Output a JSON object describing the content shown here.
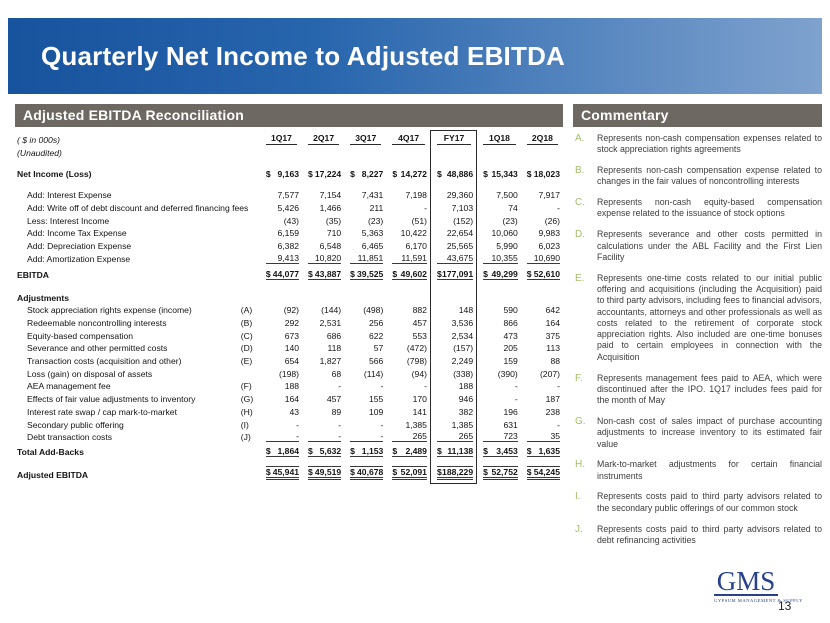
{
  "slide": {
    "title": "Quarterly Net Income to Adjusted EBITDA",
    "page_number": "13"
  },
  "reconciliation": {
    "header": "Adjusted EBITDA Reconciliation",
    "units_note": "( $ in 000s)",
    "unaudited_note": "(Unaudited)",
    "columns": [
      "1Q17",
      "2Q17",
      "3Q17",
      "4Q17",
      "FY17",
      "1Q18",
      "2Q18"
    ],
    "fy_column_index": 4,
    "rows": [
      {
        "type": "spacer",
        "h": 7
      },
      {
        "type": "data",
        "label": "Net Income (Loss)",
        "note": "",
        "bold": true,
        "dollar": true,
        "h": 14,
        "values": [
          "9,163",
          "17,224",
          "8,227",
          "14,272",
          "48,886",
          "15,343",
          "18,023"
        ]
      },
      {
        "type": "spacer",
        "h": 9
      },
      {
        "type": "data",
        "label": "Add: Interest Expense",
        "indent": true,
        "values": [
          "7,577",
          "7,154",
          "7,431",
          "7,198",
          "29,360",
          "7,500",
          "7,917"
        ]
      },
      {
        "type": "data",
        "label": "Add: Write off of debt discount and deferred financing fees",
        "indent": true,
        "values": [
          "5,426",
          "1,466",
          "211",
          "-",
          "7,103",
          "74",
          "-"
        ]
      },
      {
        "type": "data",
        "label": "Less: Interest Income",
        "indent": true,
        "values": [
          "(43)",
          "(35)",
          "(23)",
          "(51)",
          "(152)",
          "(23)",
          "(26)"
        ]
      },
      {
        "type": "data",
        "label": "Add: Income Tax Expense",
        "indent": true,
        "values": [
          "6,159",
          "710",
          "5,363",
          "10,422",
          "22,654",
          "10,060",
          "9,983"
        ]
      },
      {
        "type": "data",
        "label": "Add: Depreciation Expense",
        "indent": true,
        "values": [
          "6,382",
          "6,548",
          "6,465",
          "6,170",
          "25,565",
          "5,990",
          "6,023"
        ]
      },
      {
        "type": "data",
        "label": "Add: Amortization Expense",
        "indent": true,
        "underline": true,
        "values": [
          "9,413",
          "10,820",
          "11,851",
          "11,591",
          "43,675",
          "10,355",
          "10,690"
        ]
      },
      {
        "type": "data",
        "label": "EBITDA",
        "bold": true,
        "dollar": true,
        "underline": true,
        "h": 16,
        "values": [
          "44,077",
          "43,887",
          "39,525",
          "49,602",
          "177,091",
          "49,299",
          "52,610"
        ]
      },
      {
        "type": "spacer",
        "h": 10
      },
      {
        "type": "data",
        "label": "Adjustments",
        "bold": true,
        "h": 13,
        "values": []
      },
      {
        "type": "data",
        "label": "Stock appreciation rights expense (income)",
        "indent": true,
        "note": "(A)",
        "values": [
          "(92)",
          "(144)",
          "(498)",
          "882",
          "148",
          "590",
          "642"
        ]
      },
      {
        "type": "data",
        "label": "Redeemable noncontrolling interests",
        "indent": true,
        "note": "(B)",
        "values": [
          "292",
          "2,531",
          "256",
          "457",
          "3,536",
          "866",
          "164"
        ]
      },
      {
        "type": "data",
        "label": "Equity-based compensation",
        "indent": true,
        "note": "(C)",
        "values": [
          "673",
          "686",
          "622",
          "553",
          "2,534",
          "473",
          "375"
        ]
      },
      {
        "type": "data",
        "label": "Severance and other permitted costs",
        "indent": true,
        "note": "(D)",
        "values": [
          "140",
          "118",
          "57",
          "(472)",
          "(157)",
          "205",
          "113"
        ]
      },
      {
        "type": "data",
        "label": "Transaction costs (acquisition and other)",
        "indent": true,
        "note": "(E)",
        "values": [
          "654",
          "1,827",
          "566",
          "(798)",
          "2,249",
          "159",
          "88"
        ]
      },
      {
        "type": "data",
        "label": "Loss (gain) on disposal of assets",
        "indent": true,
        "note": "",
        "values": [
          "(198)",
          "68",
          "(114)",
          "(94)",
          "(338)",
          "(390)",
          "(207)"
        ]
      },
      {
        "type": "data",
        "label": "AEA management fee",
        "indent": true,
        "note": "(F)",
        "values": [
          "188",
          "-",
          "-",
          "-",
          "188",
          "-",
          "-"
        ]
      },
      {
        "type": "data",
        "label": "Effects of fair value adjustments to inventory",
        "indent": true,
        "note": "(G)",
        "values": [
          "164",
          "457",
          "155",
          "170",
          "946",
          "-",
          "187"
        ]
      },
      {
        "type": "data",
        "label": "Interest rate swap / cap mark-to-market",
        "indent": true,
        "note": "(H)",
        "values": [
          "43",
          "89",
          "109",
          "141",
          "382",
          "196",
          "238"
        ]
      },
      {
        "type": "data",
        "label": "Secondary public offering",
        "indent": true,
        "note": "(I)",
        "values": [
          "-",
          "-",
          "-",
          "1,385",
          "1,385",
          "631",
          "-"
        ]
      },
      {
        "type": "data",
        "label": "Debt transaction costs",
        "indent": true,
        "note": "(J)",
        "underline": true,
        "values": [
          "-",
          "-",
          "-",
          "265",
          "265",
          "723",
          "35"
        ]
      },
      {
        "type": "data",
        "label": "Total Add-Backs",
        "bold": true,
        "dollar": true,
        "underline": true,
        "h": 15,
        "values": [
          "1,864",
          "5,632",
          "1,153",
          "2,489",
          "11,138",
          "3,453",
          "1,635"
        ]
      },
      {
        "type": "spacer",
        "h": 8
      },
      {
        "type": "data",
        "label": "Adjusted EBITDA",
        "bold": true,
        "dollar": true,
        "topline": true,
        "double_underline": true,
        "h": 15,
        "values": [
          "45,941",
          "49,519",
          "40,678",
          "52,091",
          "188,229",
          "52,752",
          "54,245"
        ]
      },
      {
        "type": "boxclose",
        "h": 3
      }
    ]
  },
  "commentary": {
    "header": "Commentary",
    "items": [
      {
        "letter": "A.",
        "text": "Represents non-cash compensation expenses related to stock appreciation rights agreements"
      },
      {
        "letter": "B.",
        "text": "Represents non-cash compensation expense related to changes in the fair values of noncontrolling interests"
      },
      {
        "letter": "C.",
        "text": "Represents non-cash equity-based compensation expense related to the issuance of stock options"
      },
      {
        "letter": "D.",
        "text": "Represents severance and other costs permitted in calculations under the ABL Facility and the First Lien Facility"
      },
      {
        "letter": "E.",
        "text": "Represents one-time costs related to our initial public offering and acquisitions (including the Acquisition) paid to third party advisors, including fees to financial advisors, accountants, attorneys and other professionals as well as costs related to the retirement of corporate stock appreciation rights. Also included are one-time bonuses paid to certain employees in connection with the Acquisition"
      },
      {
        "letter": "F.",
        "text": "Represents management fees paid to AEA, which were discontinued after the IPO. 1Q17 includes fees paid for the month of May"
      },
      {
        "letter": "G.",
        "text": "Non-cash cost of sales impact of purchase accounting adjustments to increase inventory to its estimated fair value"
      },
      {
        "letter": "H.",
        "text": "Mark-to-market adjustments for certain financial instruments"
      },
      {
        "letter": "I.",
        "text": "Represents costs paid to third party advisors related to the secondary public offerings of our common stock"
      },
      {
        "letter": "J.",
        "text": "Represents costs paid to third party advisors related to debt refinancing activities"
      }
    ]
  },
  "footer": {
    "logo_text": "GMS",
    "logo_tagline": "GYPSUM MANAGEMENT & SUPPLY"
  },
  "colors": {
    "banner_left": "#18539e",
    "banner_right": "#7fa2ce",
    "section_bar": "#6e6862",
    "note_letter_green": "#a3bd6b",
    "logo_navy": "#27418c"
  }
}
